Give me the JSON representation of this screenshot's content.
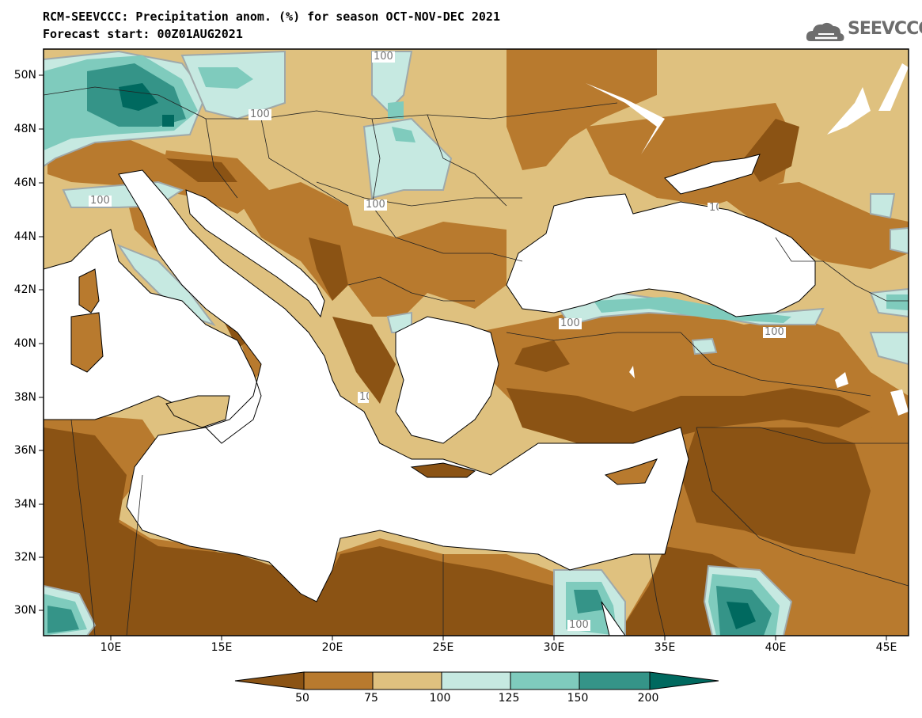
{
  "title_line1": "RCM-SEEVCCC: Precipitation anom. (%) for season OCT-NOV-DEC 2021",
  "title_line2": "Forecast start: 00Z01AUG2021",
  "logo_text": "SEEVCCC",
  "latitude_labels": [
    "50N",
    "48N",
    "46N",
    "44N",
    "42N",
    "40N",
    "38N",
    "36N",
    "34N",
    "32N",
    "30N"
  ],
  "longitude_labels": [
    "10E",
    "15E",
    "20E",
    "25E",
    "30E",
    "35E",
    "40E",
    "45E"
  ],
  "contour_labels": [
    "100",
    "100",
    "100",
    "100",
    "100",
    "100",
    "100",
    "100",
    "100"
  ],
  "colorbar": {
    "labels": [
      "50",
      "75",
      "100",
      "125",
      "150",
      "200"
    ],
    "colors": [
      "#8b5314",
      "#b87a2e",
      "#dfc17f",
      "#c6e9e1",
      "#7fcbbd",
      "#359488",
      "#00695f"
    ]
  },
  "palette": {
    "very_dry": "#8b5314",
    "dry": "#b87a2e",
    "slightly_dry": "#dfc17f",
    "slightly_wet": "#c6e9e1",
    "wet": "#7fcbbd",
    "very_wet": "#359488",
    "extreme_wet": "#00695f"
  }
}
